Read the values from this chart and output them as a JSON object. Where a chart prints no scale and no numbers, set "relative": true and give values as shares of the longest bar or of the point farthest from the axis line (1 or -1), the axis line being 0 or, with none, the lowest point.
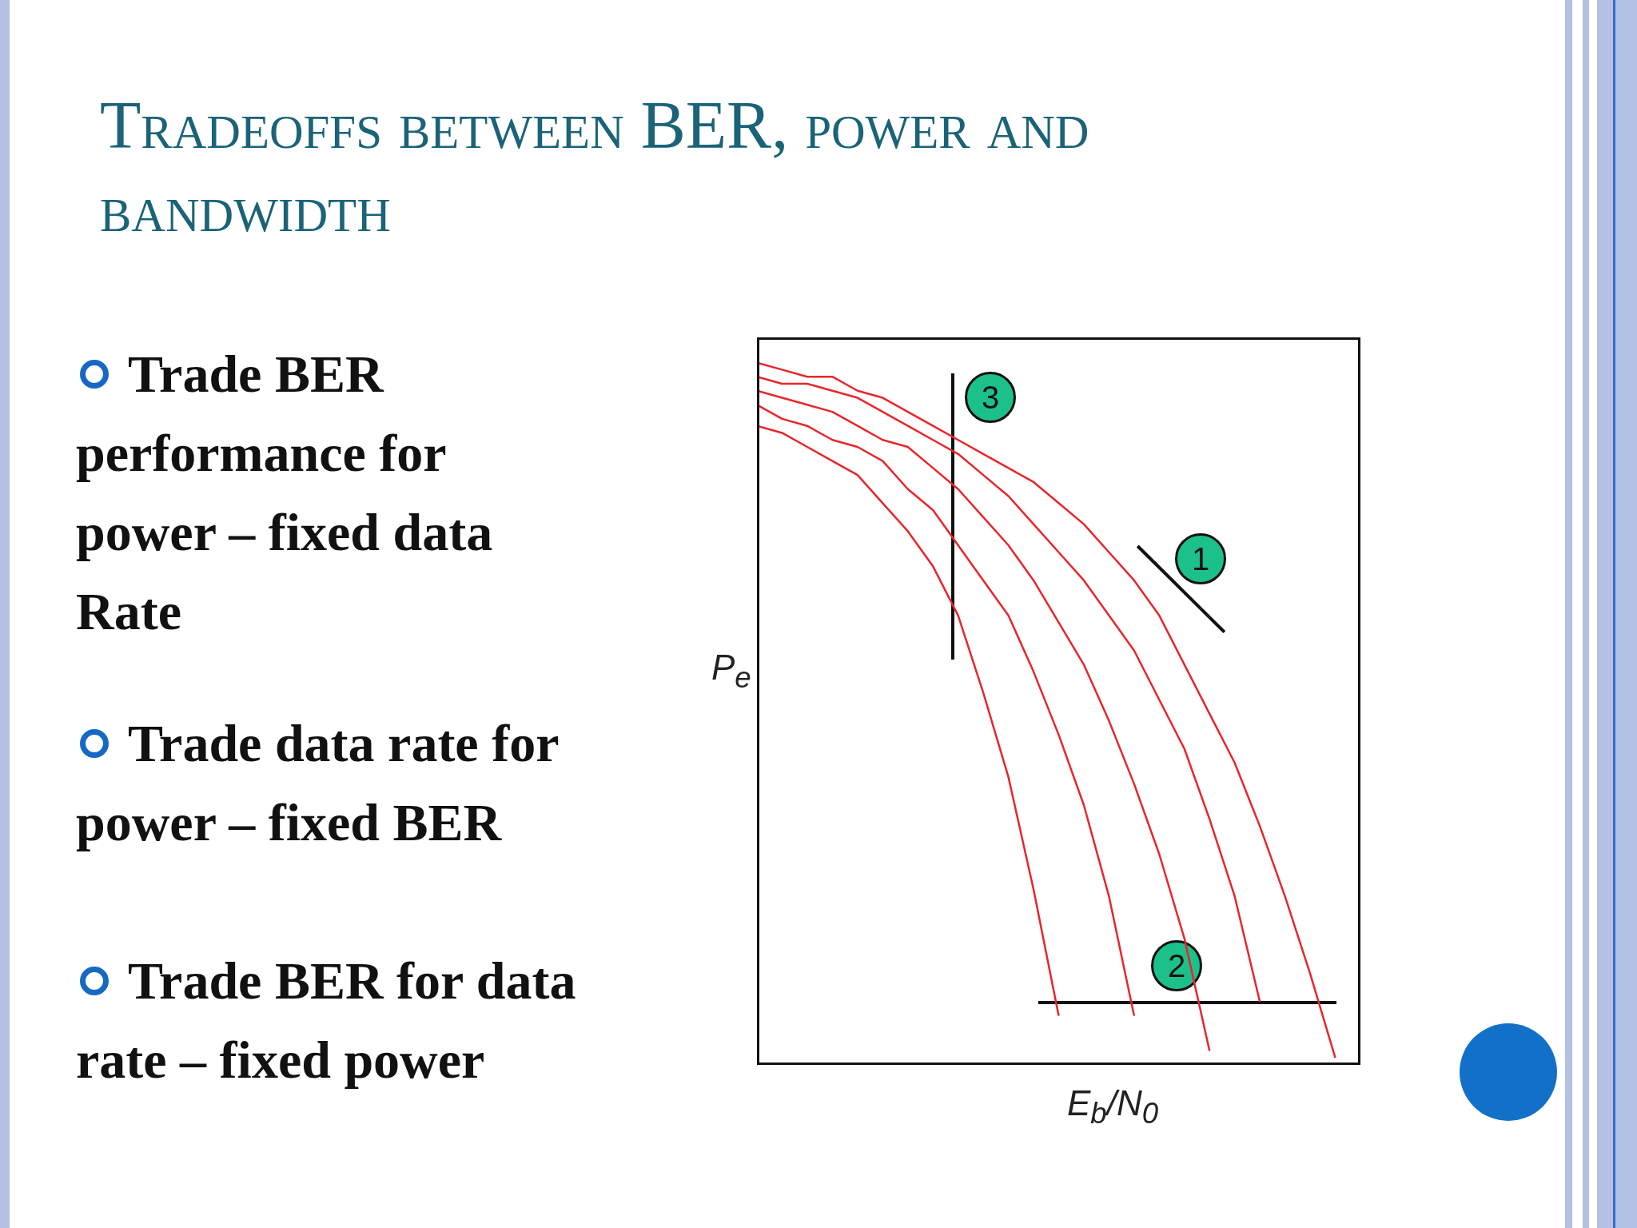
{
  "chart_data": {
    "type": "line",
    "title": "Tradeoffs between BER, power and bandwidth",
    "relative": true,
    "legend": false,
    "marker": "none",
    "xlabel": "E$_{b}$/N$_{0}$",
    "ylabel": "P$_{e}$",
    "categories": [
      null,
      null,
      null,
      null,
      null,
      null,
      null,
      null,
      null,
      null,
      null,
      null,
      null,
      null,
      null,
      null,
      null,
      null,
      null,
      null,
      null,
      null,
      null,
      null,
      null
    ],
    "series": [
      {
        "color": "#e8262a",
        "values": [
          0.91,
          0.9,
          0.88,
          0.86,
          0.84,
          0.8,
          0.76,
          0.71,
          0.64,
          0.53,
          0.41,
          0.25,
          0.07,
          null,
          null,
          null,
          null,
          null,
          null,
          null,
          null,
          null,
          null,
          null,
          null
        ]
      },
      {
        "color": "#e8262a",
        "values": [
          0.94,
          0.92,
          0.91,
          0.89,
          0.88,
          0.86,
          0.82,
          0.79,
          0.74,
          0.69,
          0.64,
          0.56,
          0.47,
          0.37,
          0.24,
          0.07,
          null,
          null,
          null,
          null,
          null,
          null,
          null,
          null,
          null
        ]
      },
      {
        "color": "#e8262a",
        "values": [
          0.96,
          0.95,
          0.94,
          0.93,
          0.91,
          0.89,
          0.88,
          0.85,
          0.82,
          0.78,
          0.74,
          0.69,
          0.63,
          0.57,
          0.49,
          0.4,
          0.3,
          0.18,
          0.02,
          null,
          null,
          null,
          null,
          null,
          null
        ]
      },
      {
        "color": "#e8262a",
        "values": [
          0.98,
          0.97,
          0.97,
          0.96,
          0.95,
          0.93,
          0.91,
          0.89,
          0.87,
          0.84,
          0.81,
          0.77,
          0.73,
          0.69,
          0.64,
          0.59,
          0.52,
          0.45,
          0.35,
          0.24,
          0.09,
          null,
          null,
          null,
          null
        ]
      },
      {
        "color": "#e8262a",
        "values": [
          1.0,
          0.99,
          0.98,
          0.98,
          0.96,
          0.95,
          0.93,
          0.91,
          0.89,
          0.87,
          0.85,
          0.83,
          0.8,
          0.77,
          0.73,
          0.69,
          0.64,
          0.57,
          0.5,
          0.43,
          0.34,
          0.24,
          0.13,
          0.01,
          null
        ]
      }
    ],
    "annotations": [
      "Trade BER performance for power – fixed data Rate",
      "Trade data rate for power – fixed BER",
      "Trade BER for data rate – fixed power",
      "3",
      "1",
      "2"
    ]
  }
}
